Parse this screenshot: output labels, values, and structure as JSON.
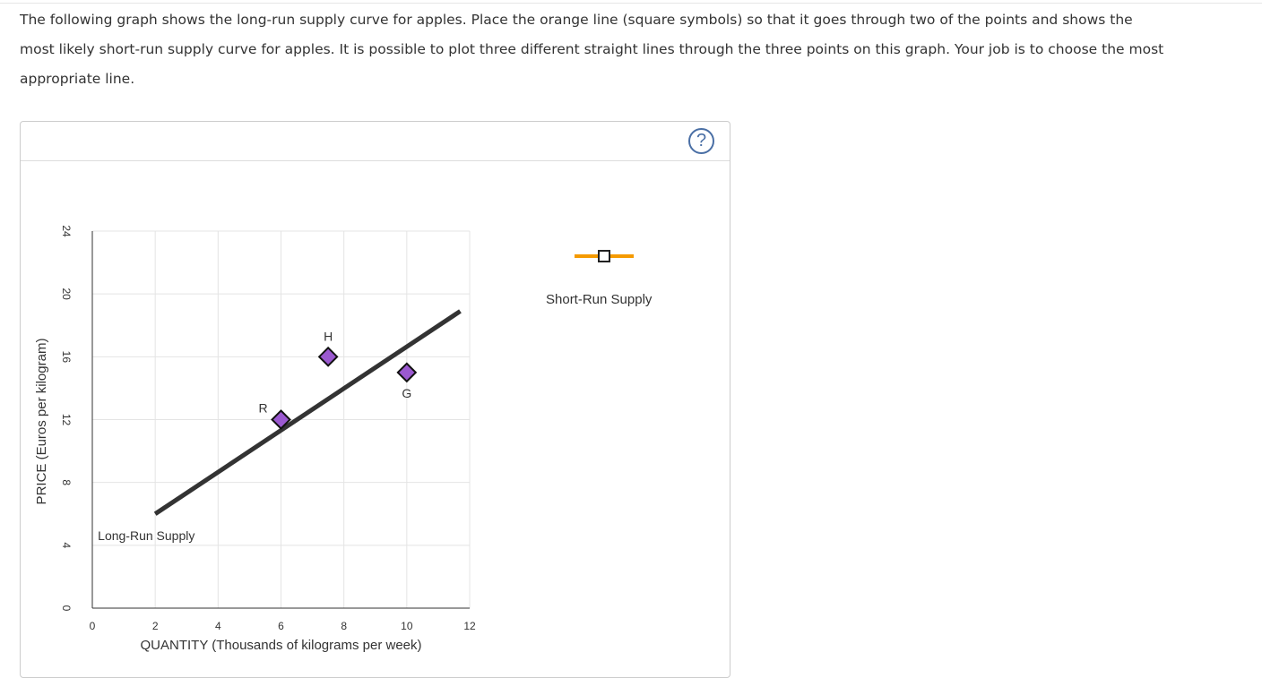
{
  "question": {
    "text": "The following graph shows the long-run supply curve for apples. Place the orange line (square symbols) so that it goes through two of the points and shows the most likely short-run supply curve for apples. It is possible to plot three different straight lines through the three points on this graph. Your job is to choose the most appropriate line."
  },
  "panel": {
    "help_label": "?"
  },
  "legend": {
    "tool_label": "Short-Run Supply",
    "tool_color": "#f59a00"
  },
  "chart_data": {
    "type": "scatter",
    "xlabel": "QUANTITY (Thousands of kilograms per week)",
    "ylabel": "PRICE (Euros per kilogram)",
    "xlim": [
      0,
      12
    ],
    "ylim": [
      0,
      24
    ],
    "x_ticks": [
      "0",
      "2",
      "4",
      "6",
      "8",
      "10",
      "12"
    ],
    "y_ticks": [
      "0",
      "4",
      "8",
      "12",
      "16",
      "20",
      "24"
    ],
    "grid": true,
    "series": [
      {
        "name": "Long-Run Supply",
        "type": "line",
        "color": "#333333",
        "points": [
          [
            2,
            6
          ],
          [
            11.7,
            18.9
          ]
        ]
      }
    ],
    "points": [
      {
        "label": "R",
        "x": 6,
        "y": 12,
        "color": "#9b59d0"
      },
      {
        "label": "H",
        "x": 7.5,
        "y": 16,
        "color": "#9b59d0"
      },
      {
        "label": "G",
        "x": 10,
        "y": 15,
        "color": "#9b59d0"
      }
    ]
  }
}
